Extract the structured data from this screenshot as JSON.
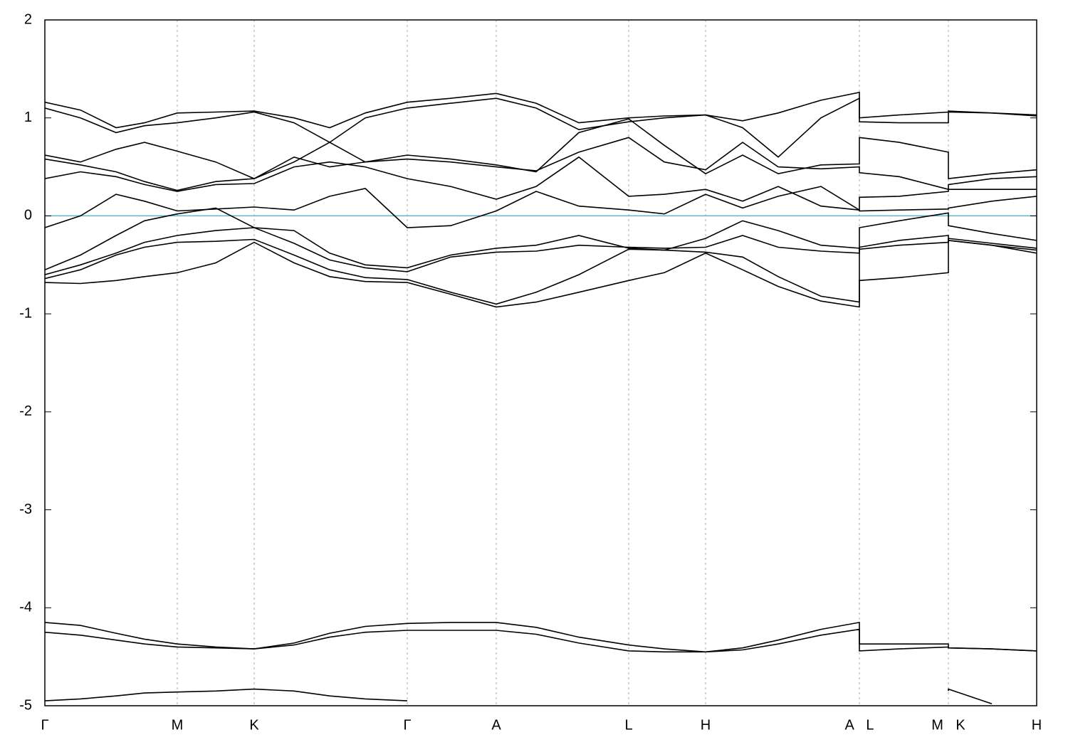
{
  "chart_data": {
    "type": "line",
    "xlim": [
      0,
      13.93
    ],
    "ylim": [
      -5,
      2
    ],
    "yticks": [
      -5,
      -4,
      -3,
      -2,
      -1,
      0,
      1,
      2
    ],
    "xticks": [
      {
        "value": 0,
        "label": "Γ"
      },
      {
        "value": 1.86,
        "label": "M"
      },
      {
        "value": 2.94,
        "label": "K"
      },
      {
        "value": 5.09,
        "label": "Γ"
      },
      {
        "value": 6.34,
        "label": "A"
      },
      {
        "value": 8.2,
        "label": "L"
      },
      {
        "value": 9.28,
        "label": "H"
      },
      {
        "value": 11.44,
        "label": "A L"
      },
      {
        "value": 12.69,
        "label": "M K"
      },
      {
        "value": 13.93,
        "label": "H"
      }
    ],
    "grid": true,
    "reference_line": {
      "value": 0,
      "color": "#5fb4c8"
    },
    "x": [
      0,
      0.5,
      1.0,
      1.4,
      1.86,
      2.4,
      2.94,
      3.5,
      4.0,
      4.5,
      5.09,
      5.7,
      6.34,
      6.9,
      7.5,
      8.2,
      8.7,
      9.28,
      9.8,
      10.3,
      10.9,
      11.44,
      11.44,
      12.0,
      12.69,
      12.69,
      13.3,
      13.93
    ],
    "series": [
      {
        "color": "#000000",
        "values": [
          -4.95,
          -4.93,
          -4.9,
          -4.87,
          -4.86,
          -4.85,
          -4.83,
          -4.85,
          -4.9,
          -4.93,
          -4.95,
          null,
          null,
          null,
          null,
          null,
          null,
          null,
          null,
          null,
          null,
          null,
          null,
          null,
          -4.85,
          -4.83,
          -4.98,
          null
        ]
      },
      {
        "color": "#000000",
        "values": [
          -4.25,
          -4.28,
          -4.33,
          -4.37,
          -4.4,
          -4.41,
          -4.42,
          -4.38,
          -4.3,
          -4.25,
          -4.23,
          -4.23,
          -4.23,
          -4.27,
          -4.36,
          -4.44,
          -4.45,
          -4.45,
          -4.43,
          -4.37,
          -4.28,
          -4.22,
          -4.44,
          -4.42,
          -4.4,
          -4.41,
          -4.42,
          -4.44
        ]
      },
      {
        "color": "#000000",
        "values": [
          -4.15,
          -4.18,
          -4.26,
          -4.32,
          -4.37,
          -4.4,
          -4.42,
          -4.36,
          -4.26,
          -4.19,
          -4.16,
          -4.15,
          -4.15,
          -4.2,
          -4.3,
          -4.38,
          -4.42,
          -4.45,
          -4.41,
          -4.33,
          -4.22,
          -4.15,
          -4.37,
          -4.37,
          -4.37,
          -4.41,
          -4.42,
          -4.44
        ]
      },
      {
        "color": "#000000",
        "values": [
          -0.68,
          -0.69,
          -0.66,
          -0.62,
          -0.58,
          -0.48,
          -0.27,
          -0.48,
          -0.62,
          -0.67,
          -0.68,
          -0.8,
          -0.93,
          -0.88,
          -0.78,
          -0.66,
          -0.58,
          -0.38,
          -0.55,
          -0.72,
          -0.87,
          -0.93,
          -0.66,
          -0.63,
          -0.58,
          -0.25,
          -0.3,
          -0.38
        ]
      },
      {
        "color": "#000000",
        "values": [
          -0.64,
          -0.55,
          -0.4,
          -0.32,
          -0.27,
          -0.26,
          -0.24,
          -0.4,
          -0.55,
          -0.63,
          -0.65,
          -0.78,
          -0.9,
          -0.78,
          -0.6,
          -0.34,
          -0.35,
          -0.37,
          -0.42,
          -0.62,
          -0.82,
          -0.88,
          -0.34,
          -0.3,
          -0.27,
          -0.23,
          -0.28,
          -0.33
        ]
      },
      {
        "color": "#000000",
        "values": [
          -0.6,
          -0.5,
          -0.38,
          -0.27,
          -0.2,
          -0.15,
          -0.12,
          -0.28,
          -0.45,
          -0.53,
          -0.57,
          -0.42,
          -0.37,
          -0.36,
          -0.3,
          -0.32,
          -0.33,
          -0.32,
          -0.2,
          -0.32,
          -0.36,
          -0.38,
          -0.32,
          -0.25,
          -0.2,
          -0.25,
          -0.3,
          -0.35
        ]
      },
      {
        "color": "#000000",
        "values": [
          -0.55,
          -0.4,
          -0.2,
          -0.05,
          0.02,
          0.08,
          -0.12,
          -0.15,
          -0.38,
          -0.5,
          -0.53,
          -0.4,
          -0.33,
          -0.3,
          -0.2,
          -0.33,
          -0.35,
          -0.23,
          -0.05,
          -0.15,
          -0.3,
          -0.33,
          -0.12,
          -0.05,
          0.03,
          -0.1,
          -0.18,
          -0.25
        ]
      },
      {
        "color": "#000000",
        "values": [
          -0.12,
          0.0,
          0.22,
          0.15,
          0.05,
          0.07,
          0.09,
          0.06,
          0.2,
          0.28,
          -0.12,
          -0.1,
          0.05,
          0.25,
          0.1,
          0.06,
          0.02,
          0.22,
          0.08,
          0.2,
          0.3,
          0.06,
          0.05,
          0.06,
          0.07,
          0.08,
          0.15,
          0.2
        ]
      },
      {
        "color": "#000000",
        "values": [
          0.38,
          0.45,
          0.4,
          0.32,
          0.25,
          0.32,
          0.33,
          0.5,
          0.55,
          0.5,
          0.38,
          0.3,
          0.17,
          0.3,
          0.6,
          0.2,
          0.22,
          0.27,
          0.15,
          0.3,
          0.1,
          0.06,
          0.19,
          0.2,
          0.25,
          0.27,
          0.27,
          0.27
        ]
      },
      {
        "color": "#000000",
        "values": [
          0.58,
          0.52,
          0.45,
          0.35,
          0.26,
          0.35,
          0.38,
          0.6,
          0.5,
          0.55,
          0.58,
          0.55,
          0.5,
          0.46,
          0.65,
          0.8,
          0.55,
          0.47,
          0.75,
          0.5,
          0.48,
          0.5,
          0.44,
          0.4,
          0.27,
          0.32,
          0.38,
          0.4
        ]
      },
      {
        "color": "#000000",
        "values": [
          0.62,
          0.55,
          0.68,
          0.75,
          0.66,
          0.55,
          0.38,
          0.55,
          0.75,
          0.55,
          0.62,
          0.58,
          0.52,
          0.45,
          0.85,
          0.99,
          0.72,
          0.43,
          0.62,
          0.43,
          0.52,
          0.53,
          0.8,
          0.75,
          0.65,
          0.38,
          0.43,
          0.47
        ]
      },
      {
        "color": "#000000",
        "values": [
          1.1,
          1.0,
          0.85,
          0.92,
          0.95,
          1.0,
          1.06,
          0.95,
          0.75,
          1.0,
          1.1,
          1.15,
          1.2,
          1.1,
          0.88,
          0.96,
          1.0,
          1.03,
          0.9,
          0.6,
          1.0,
          1.2,
          0.96,
          0.95,
          0.95,
          1.06,
          1.05,
          1.02
        ]
      },
      {
        "color": "#000000",
        "values": [
          1.16,
          1.08,
          0.9,
          0.95,
          1.05,
          1.06,
          1.07,
          1.0,
          0.9,
          1.05,
          1.16,
          1.2,
          1.25,
          1.15,
          0.95,
          1.0,
          1.02,
          1.03,
          0.97,
          1.05,
          1.18,
          1.26,
          1.0,
          1.03,
          1.06,
          1.07,
          1.05,
          1.03
        ]
      }
    ]
  }
}
